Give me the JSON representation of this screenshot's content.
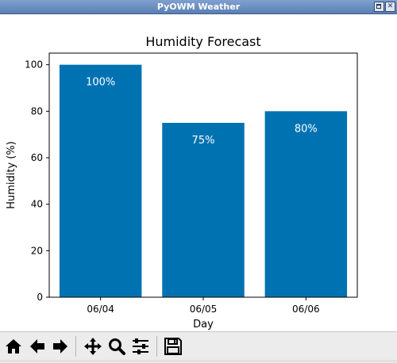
{
  "window": {
    "title": "PyOWM Weather"
  },
  "toolbar": {
    "buttons": [
      {
        "name": "home-button",
        "icon": "home-icon"
      },
      {
        "name": "back-button",
        "icon": "arrow-left-icon"
      },
      {
        "name": "forward-button",
        "icon": "arrow-right-icon"
      },
      {
        "name": "pan-button",
        "icon": "move-icon"
      },
      {
        "name": "zoom-button",
        "icon": "magnifier-icon"
      },
      {
        "name": "configure-subplots-button",
        "icon": "sliders-icon"
      },
      {
        "name": "save-button",
        "icon": "floppy-disk-icon"
      }
    ]
  },
  "chart_data": {
    "type": "bar",
    "title": "Humidity Forecast",
    "xlabel": "Day",
    "ylabel": "Humidity (%)",
    "categories": [
      "06/04",
      "06/05",
      "06/06"
    ],
    "values": [
      100,
      75,
      80
    ],
    "bar_labels": [
      "100%",
      "75%",
      "80%"
    ],
    "ylim": [
      0,
      105
    ],
    "yticks": [
      0,
      20,
      40,
      60,
      80,
      100
    ],
    "bar_color": "#0072b2",
    "label_color": "#ffffff",
    "grid": false
  }
}
